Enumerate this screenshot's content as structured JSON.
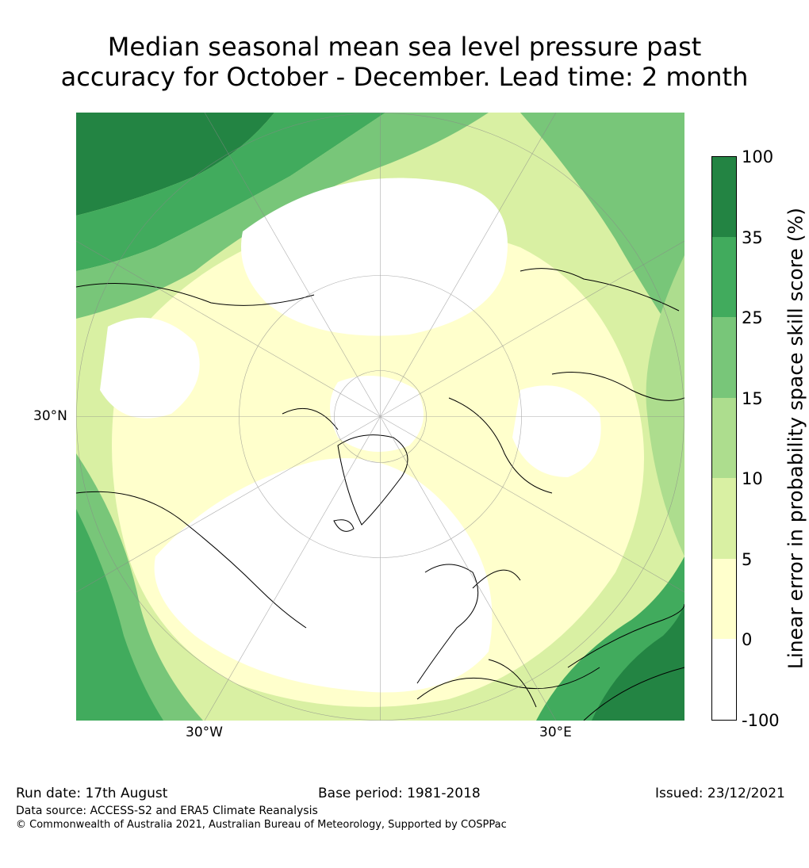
{
  "title": {
    "line1": "Median seasonal mean sea level pressure past",
    "line2": "accuracy for October - December. Lead time: 2 month"
  },
  "map": {
    "projection": "north-polar-stereographic",
    "lat_labels": [
      "30°N"
    ],
    "lon_labels": [
      "30°W",
      "30°E"
    ]
  },
  "colorbar": {
    "label": "Linear error in probability space skill score (%)",
    "ticks": [
      "100",
      "35",
      "25",
      "15",
      "10",
      "5",
      "0",
      "-100"
    ],
    "bins": [
      {
        "from": "35",
        "to": "100",
        "color": "#238443"
      },
      {
        "from": "25",
        "to": "35",
        "color": "#41ab5d"
      },
      {
        "from": "15",
        "to": "25",
        "color": "#78c679"
      },
      {
        "from": "10",
        "to": "15",
        "color": "#addd8e"
      },
      {
        "from": "5",
        "to": "10",
        "color": "#d9f0a3"
      },
      {
        "from": "0",
        "to": "5",
        "color": "#ffffcc"
      },
      {
        "from": "-100",
        "to": "0",
        "color": "#ffffff"
      }
    ]
  },
  "footer": {
    "run_date": "Run date: 17th August",
    "base_period": "Base period: 1981-2018",
    "issued": "Issued: 23/12/2021",
    "data_source": "Data source: ACCESS-S2 and ERA5 Climate Reanalysis",
    "copyright": "© Commonwealth of Australia 2021, Australian Bureau of Meteorology, Supported by COSPPac"
  }
}
